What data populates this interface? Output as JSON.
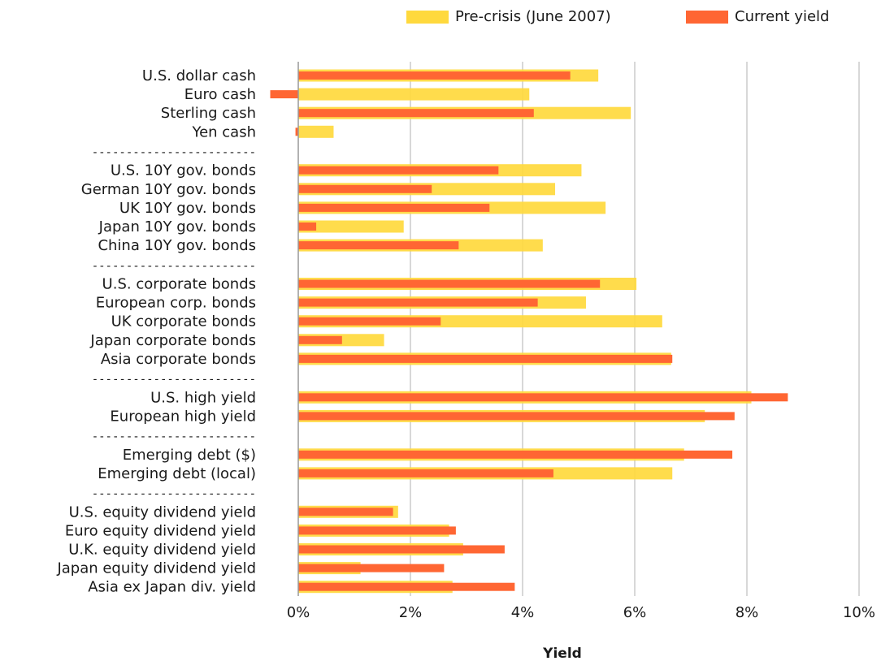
{
  "chart_data": {
    "type": "bar",
    "orientation": "horizontal",
    "xlabel": "Yield",
    "ylabel": "",
    "xlim": [
      -0.5,
      10
    ],
    "xticks": [
      "0%",
      "2%",
      "4%",
      "6%",
      "8%",
      "10%"
    ],
    "grid": true,
    "legend_position": "top-right",
    "separator": "------------------------",
    "colors": {
      "pre_crisis": "#FFD93D",
      "current": "#FF6633",
      "grid": "#cccccc",
      "zero_line": "#999999"
    },
    "series": [
      {
        "name": "Pre-crisis (June 2007)"
      },
      {
        "name": "Current yield"
      }
    ],
    "groups": [
      {
        "items": [
          {
            "label": "U.S. dollar cash",
            "pre": 5.35,
            "current": 4.85
          },
          {
            "label": "Euro cash",
            "pre": 4.12,
            "current": -0.5
          },
          {
            "label": "Sterling cash",
            "pre": 5.93,
            "current": 4.2
          },
          {
            "label": "Yen cash",
            "pre": 0.63,
            "current": -0.05
          }
        ]
      },
      {
        "items": [
          {
            "label": "U.S. 10Y gov. bonds",
            "pre": 5.05,
            "current": 3.57
          },
          {
            "label": "German 10Y gov. bonds",
            "pre": 4.58,
            "current": 2.38
          },
          {
            "label": "UK 10Y gov. bonds",
            "pre": 5.48,
            "current": 3.41
          },
          {
            "label": "Japan 10Y gov. bonds",
            "pre": 1.88,
            "current": 0.32
          },
          {
            "label": "China 10Y gov. bonds",
            "pre": 4.36,
            "current": 2.86
          }
        ]
      },
      {
        "items": [
          {
            "label": "U.S. corporate bonds",
            "pre": 6.03,
            "current": 5.38
          },
          {
            "label": "European corp. bonds",
            "pre": 5.13,
            "current": 4.27
          },
          {
            "label": "UK corporate bonds",
            "pre": 6.49,
            "current": 2.54
          },
          {
            "label": "Japan corporate bonds",
            "pre": 1.53,
            "current": 0.78
          },
          {
            "label": "Asia corporate bonds",
            "pre": 6.65,
            "current": 6.67
          }
        ]
      },
      {
        "items": [
          {
            "label": "U.S. high yield",
            "pre": 8.08,
            "current": 8.73
          },
          {
            "label": "European high yield",
            "pre": 7.25,
            "current": 7.78
          }
        ]
      },
      {
        "items": [
          {
            "label": "Emerging debt ($)",
            "pre": 6.88,
            "current": 7.74
          },
          {
            "label": "Emerging debt (local)",
            "pre": 6.67,
            "current": 4.55
          }
        ]
      },
      {
        "items": [
          {
            "label": "U.S. equity dividend yield",
            "pre": 1.78,
            "current": 1.69
          },
          {
            "label": "Euro equity dividend yield",
            "pre": 2.69,
            "current": 2.81
          },
          {
            "label": "U.K. equity dividend yield",
            "pre": 2.94,
            "current": 3.68
          },
          {
            "label": "Japan equity dividend yield",
            "pre": 1.11,
            "current": 2.6
          },
          {
            "label": "Asia ex Japan div. yield",
            "pre": 2.75,
            "current": 3.86
          }
        ]
      }
    ]
  }
}
